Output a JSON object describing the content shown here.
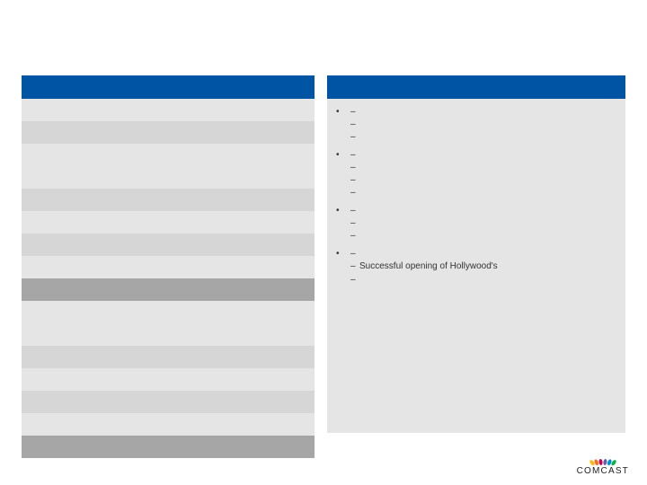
{
  "colors": {
    "header_bar": "#0054a4",
    "row_light": "#e5e5e5",
    "row_med": "#d6d6d6",
    "row_dark": "#a6a6a6",
    "right_bg": "#e5e5e5"
  },
  "left_table": {
    "rows": [
      {
        "shade": "light",
        "label": "",
        "v1": "",
        "v2": "",
        "v3": ""
      },
      {
        "shade": "med",
        "label": "",
        "v1": "",
        "v2": "",
        "v3": ""
      },
      {
        "shade": "light",
        "label": "",
        "v1": "",
        "v2": "",
        "v3": ""
      },
      {
        "shade": "light",
        "label": "",
        "v1": "",
        "v2": "",
        "v3": ""
      },
      {
        "shade": "med",
        "label": "",
        "v1": "",
        "v2": "",
        "v3": ""
      },
      {
        "shade": "light",
        "label": "",
        "v1": "",
        "v2": "",
        "v3": ""
      },
      {
        "shade": "med",
        "label": "",
        "v1": "",
        "v2": "",
        "v3": ""
      },
      {
        "shade": "light",
        "label": "",
        "v1": "",
        "v2": "",
        "v3": ""
      },
      {
        "shade": "dark",
        "label": "",
        "v1": "",
        "v2": "",
        "v3": ""
      },
      {
        "shade": "light",
        "label": "",
        "v1": "",
        "v2": "",
        "v3": ""
      },
      {
        "shade": "light",
        "label": "",
        "v1": "",
        "v2": "",
        "v3": ""
      },
      {
        "shade": "med",
        "label": "",
        "v1": "",
        "v2": "",
        "v3": ""
      },
      {
        "shade": "light",
        "label": "",
        "v1": "",
        "v2": "",
        "v3": ""
      },
      {
        "shade": "med",
        "label": "",
        "v1": "",
        "v2": "",
        "v3": ""
      },
      {
        "shade": "light",
        "label": "",
        "v1": "",
        "v2": "",
        "v3": ""
      },
      {
        "shade": "dark",
        "label": "",
        "v1": "",
        "v2": "",
        "v3": ""
      }
    ]
  },
  "right_sections": [
    {
      "main": "",
      "subs": [
        "",
        "",
        ""
      ]
    },
    {
      "main": "",
      "subs": [
        "",
        "",
        "",
        ""
      ]
    },
    {
      "main": "",
      "subs": [
        "",
        "",
        ""
      ]
    },
    {
      "main": "",
      "subs": [
        "",
        "Successful opening of Hollywood's",
        ""
      ]
    }
  ],
  "logo": {
    "text": "COMCAST",
    "feathers": [
      "#fdb913",
      "#f37021",
      "#cc004c",
      "#6460aa",
      "#0089d0",
      "#0db14b"
    ]
  }
}
